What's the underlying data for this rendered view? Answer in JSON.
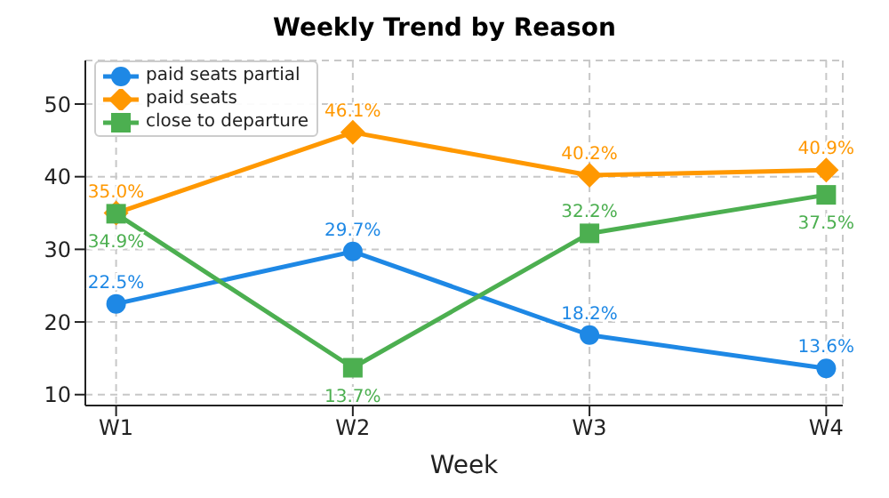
{
  "chart_data": {
    "type": "line",
    "title": "Weekly Trend by Reason",
    "xlabel": "Week",
    "categories": [
      "W1",
      "W2",
      "W3",
      "W4"
    ],
    "ylim": [
      8.5,
      56
    ],
    "yticks": [
      10,
      20,
      30,
      40,
      50
    ],
    "grid": true,
    "legend": "top left",
    "series": [
      {
        "name": "paid seats partial",
        "color": "#1e88e5",
        "marker": "circle",
        "values": [
          22.5,
          29.7,
          18.2,
          13.6
        ],
        "value_labels": [
          "22.5%",
          "29.7%",
          "18.2%",
          "13.6%"
        ]
      },
      {
        "name": "paid seats",
        "color": "#ff9800",
        "marker": "diamond",
        "values": [
          35.0,
          46.1,
          40.2,
          40.9
        ],
        "value_labels": [
          "35.0%",
          "46.1%",
          "40.2%",
          "40.9%"
        ]
      },
      {
        "name": "close to departure",
        "color": "#4caf50",
        "marker": "square",
        "values": [
          34.9,
          13.7,
          32.2,
          37.5
        ],
        "value_labels": [
          "34.9%",
          "13.7%",
          "32.2%",
          "37.5%"
        ]
      }
    ]
  }
}
